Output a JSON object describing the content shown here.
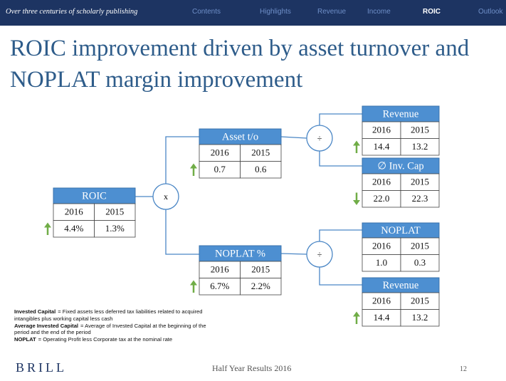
{
  "header": {
    "tagline": "Over three centuries of scholarly publishing",
    "nav": [
      "Contents",
      "Highlights",
      "Revenue",
      "Income",
      "ROIC",
      "Outlook"
    ],
    "active_index": 4
  },
  "title": "ROIC improvement driven by asset turnover and NOPLAT margin improvement",
  "nodes": [
    {
      "label": "ROIC",
      "years": [
        "2016",
        "2015"
      ],
      "values": [
        "4.4%",
        "1.3%"
      ],
      "trend": "up"
    },
    {
      "label": "Asset t/o",
      "years": [
        "2016",
        "2015"
      ],
      "values": [
        "0.7",
        "0.6"
      ],
      "trend": "up"
    },
    {
      "label": "NOPLAT %",
      "years": [
        "2016",
        "2015"
      ],
      "values": [
        "6.7%",
        "2.2%"
      ],
      "trend": "up"
    },
    {
      "label": "Revenue",
      "years": [
        "2016",
        "2015"
      ],
      "values": [
        "14.4",
        "13.2"
      ],
      "trend": "up"
    },
    {
      "label": "∅ Inv. Cap",
      "years": [
        "2016",
        "2015"
      ],
      "values": [
        "22.0",
        "22.3"
      ],
      "trend": "down"
    },
    {
      "label": "NOPLAT",
      "years": [
        "2016",
        "2015"
      ],
      "values": [
        "1.0",
        "0.3"
      ],
      "trend": null
    },
    {
      "label": "Revenue",
      "years": [
        "2016",
        "2015"
      ],
      "values": [
        "14.4",
        "13.2"
      ],
      "trend": "up"
    }
  ],
  "operators": [
    "x",
    "÷",
    "÷"
  ],
  "notes": [
    {
      "term": "Invested Capital",
      "text": "= Fixed assets less deferred tax liabilities related to acquired intangibles plus working capital less cash"
    },
    {
      "term": "Average Invested Capital",
      "text": "= Average of Invested Capital at the beginning of the period and the end of the period"
    },
    {
      "term": "NOPLAT",
      "text": "= Operating Profit less Corporate tax at the nominal rate"
    }
  ],
  "footer": {
    "brand": "BRILL",
    "center": "Half Year Results 2016",
    "page": "12"
  }
}
